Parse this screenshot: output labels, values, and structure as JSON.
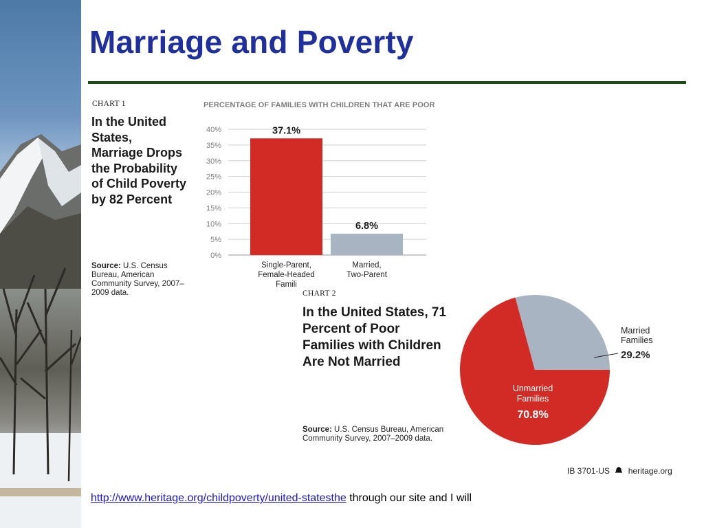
{
  "slide": {
    "title": "Marriage and Poverty"
  },
  "chart1": {
    "tag": "CHART 1",
    "headline": "In the United\nStates,\nMarriage Drops\nthe Probability\nof Child Poverty\nby 82 Percent",
    "subtitle": "PERCENTAGE OF FAMILIES WITH CHILDREN THAT ARE POOR",
    "source_label": "Source:",
    "source_text": " U.S. Census Bureau, American Community Survey, 2007–2009 data."
  },
  "chart2": {
    "tag": "CHART 2",
    "headline": "In the United States, 71\nPercent of Poor\nFamilies with Children\nAre Not Married",
    "source_label": "Source:",
    "source_text": " U.S. Census Bureau, American Community Survey, 2007–2009 data."
  },
  "footer": {
    "id_text": "IB 3701-US",
    "site": "heritage.org",
    "link": "http://www.heritage.org/childpoverty/united-statesthe",
    "trailing_text": " through our site and I will"
  },
  "colors": {
    "title_blue": "#1f2f9c",
    "rule_green": "#1e4a17",
    "bar_red": "#d22b25",
    "bar_gray": "#a9b4c2"
  },
  "chart_data": [
    {
      "type": "bar",
      "title": "PERCENTAGE OF FAMILIES WITH CHILDREN THAT ARE POOR",
      "categories": [
        "Single-Parent,\nFemale-Headed\nFamili",
        "Married,\nTwo-Parent"
      ],
      "values": [
        37.1,
        6.8
      ],
      "value_labels": [
        "37.1%",
        "6.8%"
      ],
      "colors": [
        "#d22b25",
        "#a9b4c2"
      ],
      "ylim": [
        0,
        40
      ],
      "yticks": [
        0,
        5,
        10,
        15,
        20,
        25,
        30,
        35,
        40
      ],
      "ytick_labels": [
        "0%",
        "5%",
        "10%",
        "15%",
        "20%",
        "25%",
        "30%",
        "35%",
        "40%"
      ],
      "grid": true,
      "xlabel": "",
      "ylabel": ""
    },
    {
      "type": "pie",
      "title": "",
      "slices": [
        {
          "label": "Married\nFamilies",
          "value": 29.2,
          "value_label": "29.2%",
          "color": "#a9b4c2"
        },
        {
          "label": "Unmarried\nFamilies",
          "value": 70.8,
          "value_label": "70.8%",
          "color": "#d22b25"
        }
      ]
    }
  ]
}
